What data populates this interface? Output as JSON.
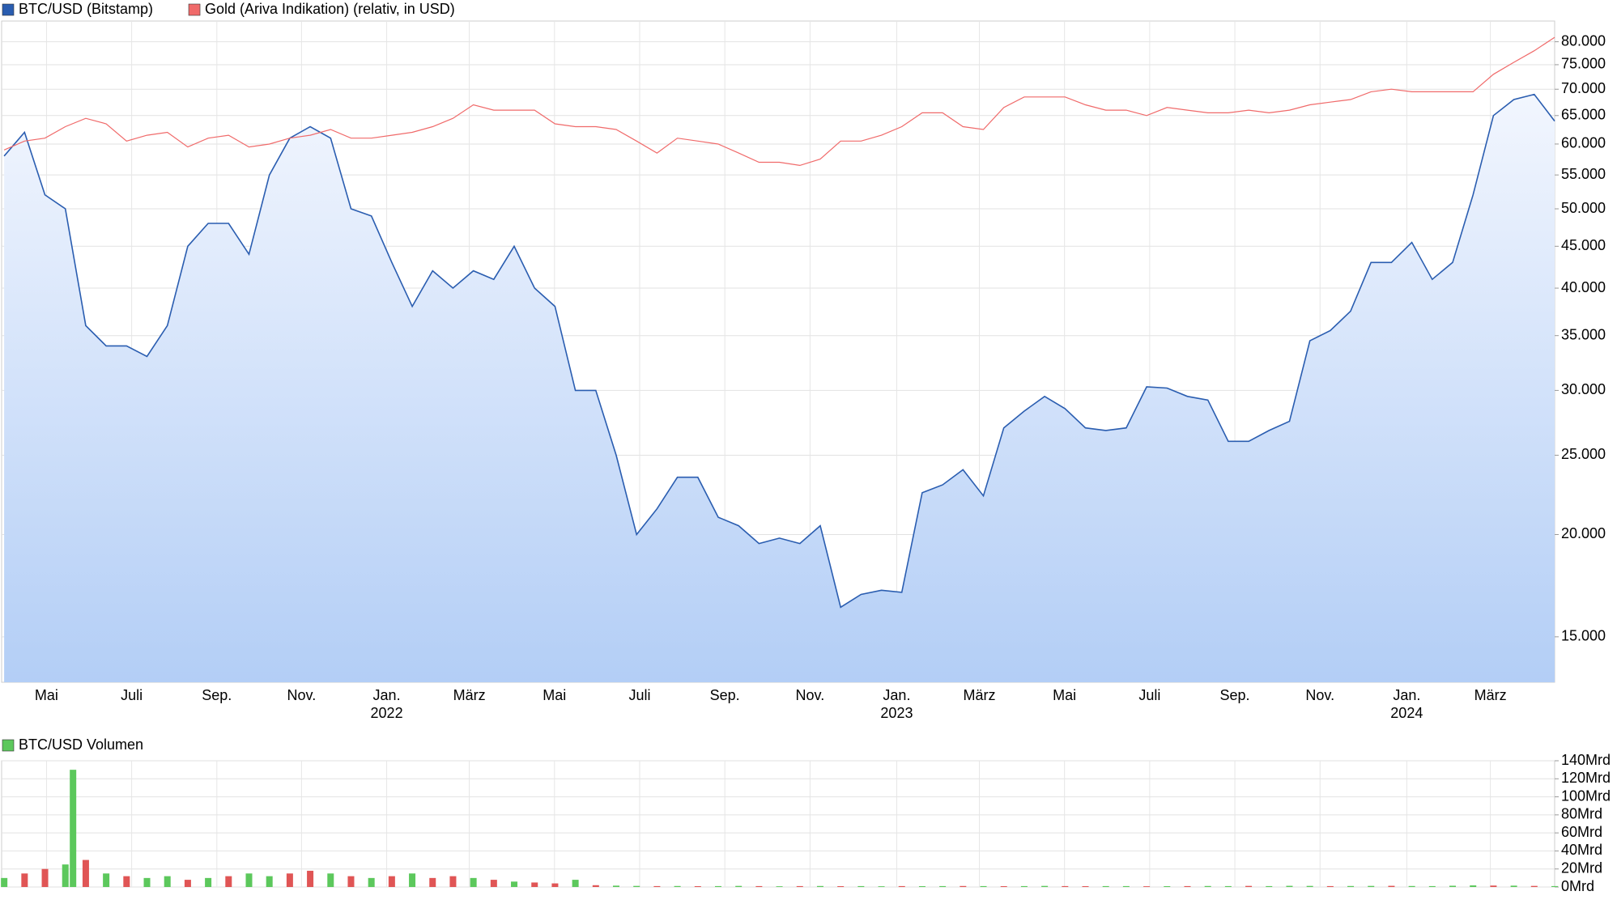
{
  "chart_data": [
    {
      "type": "line",
      "log_y": true,
      "grid": true,
      "x": [
        2021.25,
        2021.29,
        2021.33,
        2021.37,
        2021.41,
        2021.45,
        2021.49,
        2021.53,
        2021.57,
        2021.61,
        2021.65,
        2021.69,
        2021.73,
        2021.77,
        2021.81,
        2021.85,
        2021.89,
        2021.93,
        2021.97,
        2022.01,
        2022.05,
        2022.09,
        2022.13,
        2022.17,
        2022.21,
        2022.25,
        2022.29,
        2022.33,
        2022.37,
        2022.41,
        2022.45,
        2022.49,
        2022.53,
        2022.57,
        2022.61,
        2022.65,
        2022.69,
        2022.73,
        2022.77,
        2022.81,
        2022.85,
        2022.89,
        2022.93,
        2022.97,
        2023.01,
        2023.05,
        2023.09,
        2023.13,
        2023.17,
        2023.21,
        2023.25,
        2023.29,
        2023.33,
        2023.37,
        2023.41,
        2023.45,
        2023.49,
        2023.53,
        2023.57,
        2023.61,
        2023.65,
        2023.69,
        2023.73,
        2023.77,
        2023.81,
        2023.85,
        2023.89,
        2023.93,
        2023.97,
        2024.01,
        2024.05,
        2024.09,
        2024.13,
        2024.17,
        2024.21,
        2024.25,
        2024.29
      ],
      "series": [
        {
          "name": "BTC/USD (Bitstamp)",
          "color": "#2a5db0",
          "fill": true,
          "values": [
            58000,
            62000,
            52000,
            50000,
            36000,
            34000,
            34000,
            33000,
            36000,
            45000,
            48000,
            48000,
            44000,
            55000,
            61000,
            63000,
            61000,
            50000,
            49000,
            43000,
            38000,
            42000,
            40000,
            42000,
            41000,
            45000,
            40000,
            38000,
            30000,
            30000,
            25000,
            20000,
            21500,
            23500,
            23500,
            21000,
            20500,
            19500,
            19800,
            19500,
            20500,
            16300,
            16900,
            17100,
            17000,
            22500,
            23000,
            24000,
            22300,
            27000,
            28300,
            29500,
            28500,
            27000,
            26800,
            27000,
            30300,
            30200,
            29500,
            29200,
            26000,
            26000,
            26800,
            27500,
            34500,
            35500,
            37500,
            43000,
            43000,
            45500,
            41000,
            43000,
            52000,
            65000,
            68000,
            69000,
            64000
          ]
        },
        {
          "name": "Gold (Ariva Indikation) (relativ, in USD)",
          "color": "#f06a6a",
          "fill": false,
          "values": [
            59000,
            60500,
            61000,
            63000,
            64500,
            63500,
            60500,
            61500,
            62000,
            59500,
            61000,
            61500,
            59500,
            60000,
            61000,
            61500,
            62500,
            61000,
            61000,
            61500,
            62000,
            63000,
            64500,
            67000,
            66000,
            66000,
            66000,
            63500,
            63000,
            63000,
            62500,
            60500,
            58500,
            61000,
            60500,
            60000,
            58500,
            57000,
            57000,
            56500,
            57500,
            60500,
            60500,
            61500,
            63000,
            65500,
            65500,
            63000,
            62500,
            66500,
            68500,
            68500,
            68500,
            67000,
            66000,
            66000,
            65000,
            66500,
            66000,
            65500,
            65500,
            66000,
            65500,
            66000,
            67000,
            67500,
            68000,
            69500,
            70000,
            69500,
            69500,
            69500,
            69500,
            73000,
            75500,
            78000,
            81000
          ]
        }
      ],
      "xlim": [
        2021.245,
        2024.29
      ],
      "xticks": [
        {
          "value": 2021.333,
          "label": "Mai"
        },
        {
          "value": 2021.5,
          "label": "Juli"
        },
        {
          "value": 2021.667,
          "label": "Sep."
        },
        {
          "value": 2021.833,
          "label": "Nov."
        },
        {
          "value": 2022.0,
          "label": "Jan.",
          "year": "2022"
        },
        {
          "value": 2022.162,
          "label": "März"
        },
        {
          "value": 2022.329,
          "label": "Mai"
        },
        {
          "value": 2022.496,
          "label": "Juli"
        },
        {
          "value": 2022.663,
          "label": "Sep."
        },
        {
          "value": 2022.83,
          "label": "Nov."
        },
        {
          "value": 2023.0,
          "label": "Jan.",
          "year": "2023"
        },
        {
          "value": 2023.162,
          "label": "März"
        },
        {
          "value": 2023.329,
          "label": "Mai"
        },
        {
          "value": 2023.496,
          "label": "Juli"
        },
        {
          "value": 2023.663,
          "label": "Sep."
        },
        {
          "value": 2023.83,
          "label": "Nov."
        },
        {
          "value": 2024.0,
          "label": "Jan.",
          "year": "2024"
        },
        {
          "value": 2024.164,
          "label": "März"
        }
      ],
      "ylim": [
        13200,
        84800
      ],
      "yticks": [
        {
          "value": 15000,
          "label": "15.000"
        },
        {
          "value": 20000,
          "label": "20.000"
        },
        {
          "value": 25000,
          "label": "25.000"
        },
        {
          "value": 30000,
          "label": "30.000"
        },
        {
          "value": 35000,
          "label": "35.000"
        },
        {
          "value": 40000,
          "label": "40.000"
        },
        {
          "value": 45000,
          "label": "45.000"
        },
        {
          "value": 50000,
          "label": "50.000"
        },
        {
          "value": 55000,
          "label": "55.000"
        },
        {
          "value": 60000,
          "label": "60.000"
        },
        {
          "value": 65000,
          "label": "65.000"
        },
        {
          "value": 70000,
          "label": "70.000"
        },
        {
          "value": 75000,
          "label": "75.000"
        },
        {
          "value": 80000,
          "label": "80.000"
        }
      ]
    },
    {
      "type": "bar",
      "grid": true,
      "x": [
        2021.25,
        2021.29,
        2021.33,
        2021.37,
        2021.385,
        2021.41,
        2021.45,
        2021.49,
        2021.53,
        2021.57,
        2021.61,
        2021.65,
        2021.69,
        2021.73,
        2021.77,
        2021.81,
        2021.85,
        2021.89,
        2021.93,
        2021.97,
        2022.01,
        2022.05,
        2022.09,
        2022.13,
        2022.17,
        2022.21,
        2022.25,
        2022.29,
        2022.33,
        2022.37,
        2022.41,
        2022.45,
        2022.49,
        2022.53,
        2022.57,
        2022.61,
        2022.65,
        2022.69,
        2022.73,
        2022.77,
        2022.81,
        2022.85,
        2022.89,
        2022.93,
        2022.97,
        2023.01,
        2023.05,
        2023.09,
        2023.13,
        2023.17,
        2023.21,
        2023.25,
        2023.29,
        2023.33,
        2023.37,
        2023.41,
        2023.45,
        2023.49,
        2023.53,
        2023.57,
        2023.61,
        2023.65,
        2023.69,
        2023.73,
        2023.77,
        2023.81,
        2023.85,
        2023.89,
        2023.93,
        2023.97,
        2024.01,
        2024.05,
        2024.09,
        2024.13,
        2024.17,
        2024.21,
        2024.25,
        2024.29
      ],
      "series": [
        {
          "name": "BTC/USD Volumen",
          "color": "#5cc85c",
          "values": [
            10,
            15,
            20,
            25,
            130,
            30,
            15,
            12,
            10,
            12,
            8,
            10,
            12,
            15,
            12,
            15,
            18,
            15,
            12,
            10,
            12,
            15,
            10,
            12,
            10,
            8,
            6,
            5,
            4,
            8,
            2,
            1.5,
            1.2,
            1,
            1.1,
            0.9,
            1,
            1.2,
            1,
            0.8,
            1,
            1.1,
            0.9,
            1,
            0.8,
            1,
            0.9,
            1,
            1.1,
            1,
            0.9,
            1,
            1.2,
            1,
            0.9,
            1,
            1,
            0.8,
            0.9,
            1,
            1.1,
            1,
            1.2,
            1,
            1.3,
            1.2,
            1,
            1.1,
            1.2,
            1.3,
            1.1,
            1,
            1.4,
            1.8,
            1.6,
            1.5,
            1.2,
            1
          ]
        }
      ],
      "bar_colors": [
        "#5cc85c",
        "#e05555",
        "#e05555",
        "#5cc85c",
        "#5cc85c",
        "#e05555",
        "#5cc85c",
        "#e05555",
        "#5cc85c",
        "#5cc85c",
        "#e05555",
        "#5cc85c",
        "#e05555",
        "#5cc85c",
        "#5cc85c",
        "#e05555",
        "#e05555",
        "#5cc85c",
        "#e05555",
        "#5cc85c",
        "#e05555",
        "#5cc85c",
        "#e05555",
        "#e05555",
        "#5cc85c",
        "#e05555",
        "#5cc85c",
        "#e05555",
        "#e05555",
        "#5cc85c",
        "#e05555",
        "#5cc85c",
        "#5cc85c",
        "#e05555",
        "#5cc85c",
        "#e05555",
        "#5cc85c",
        "#5cc85c",
        "#e05555",
        "#5cc85c",
        "#e05555",
        "#5cc85c",
        "#e05555",
        "#5cc85c",
        "#5cc85c",
        "#e05555",
        "#5cc85c",
        "#5cc85c",
        "#e05555",
        "#5cc85c",
        "#e05555",
        "#5cc85c",
        "#5cc85c",
        "#e05555",
        "#e05555",
        "#5cc85c",
        "#5cc85c",
        "#e05555",
        "#5cc85c",
        "#e05555",
        "#5cc85c",
        "#5cc85c",
        "#e05555",
        "#5cc85c",
        "#5cc85c",
        "#5cc85c",
        "#e05555",
        "#5cc85c",
        "#5cc85c",
        "#e05555",
        "#5cc85c",
        "#5cc85c",
        "#5cc85c",
        "#5cc85c",
        "#e05555",
        "#5cc85c",
        "#e05555",
        "#5cc85c"
      ],
      "xlim": [
        2021.245,
        2024.29
      ],
      "ylim": [
        0,
        140
      ],
      "yticks": [
        {
          "value": 0,
          "label": "0Mrd"
        },
        {
          "value": 20,
          "label": "20Mrd"
        },
        {
          "value": 40,
          "label": "40Mrd"
        },
        {
          "value": 60,
          "label": "60Mrd"
        },
        {
          "value": 80,
          "label": "80Mrd"
        },
        {
          "value": 100,
          "label": "100Mrd"
        },
        {
          "value": 120,
          "label": "120Mrd"
        },
        {
          "value": 140,
          "label": "140Mrd"
        }
      ]
    }
  ]
}
